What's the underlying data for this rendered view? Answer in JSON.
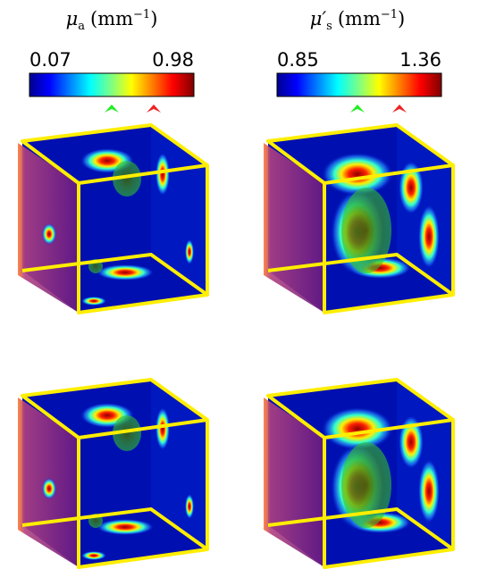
{
  "panels": [
    {
      "title": {
        "symbol": "μ",
        "subscript": "a",
        "unit": "(mm",
        "exponent": "−1",
        "close": ")"
      },
      "min": "0.07",
      "max": "0.98"
    },
    {
      "title": {
        "symbol": "μ′",
        "subscript": "s",
        "unit": "(mm",
        "exponent": "−1",
        "close": ")"
      },
      "min": "0.85",
      "max": "1.36"
    }
  ]
}
